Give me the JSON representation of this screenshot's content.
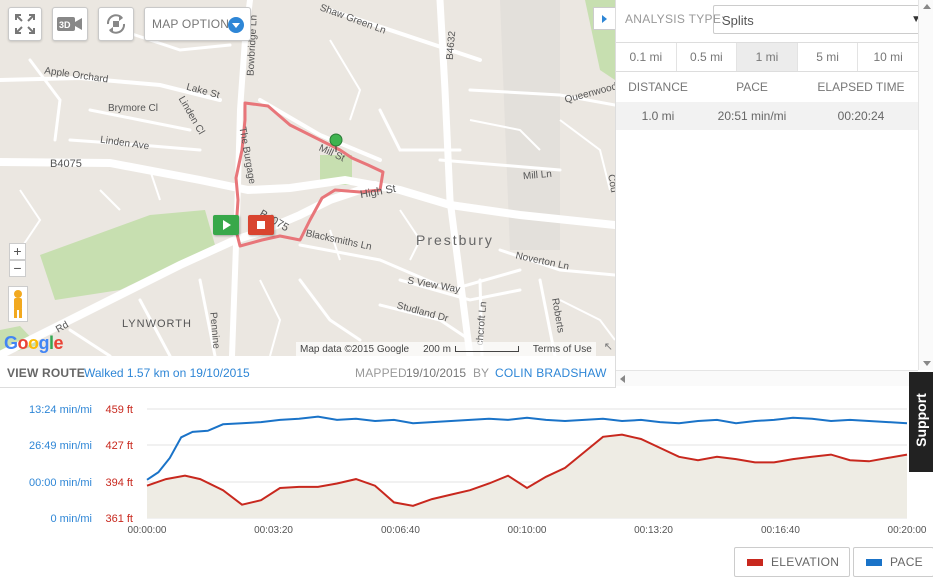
{
  "map": {
    "buttons": {
      "map_options_label": "MAP OPTIONS"
    },
    "zoom": {
      "in": "+",
      "out": "−"
    },
    "logo": "Google",
    "footer": {
      "data": "Map data ©2015 Google",
      "scale": "200 m",
      "terms": "Terms of Use"
    },
    "streets": {
      "shaw_green": "Shaw Green Ln",
      "b4632": "B4632",
      "bowbridge": "Bowbridge Ln",
      "apple_orchard": "Apple Orchard",
      "lake_st": "Lake St",
      "brymore": "Brymore Cl",
      "linden_cl": "Linden Cl",
      "linden_ave": "Linden Ave",
      "b4075": "B4075",
      "the_burgage": "The Burgage",
      "mill_st": "Mill St",
      "mill_ln": "Mill Ln",
      "high_st": "High St",
      "queenwood": "Queenwood",
      "b4075b": "B4075",
      "blacksmiths": "Blacksmiths Ln",
      "prestbury": "Prestbury",
      "noverton": "Noverton Ln",
      "s_view": "S View Way",
      "studland": "Studland Dr",
      "lynworth": "LYNWORTH",
      "pennine": "Pennine",
      "roberts": "Roberts",
      "ashcroft": "chcroft Ln",
      "rd": "Rd",
      "cou": "Cou"
    }
  },
  "analysis": {
    "label": "ANALYSIS TYPE:",
    "selected": "Splits",
    "tabs": [
      "0.1 mi",
      "0.5 mi",
      "1 mi",
      "5 mi",
      "10 mi"
    ],
    "active_tab": "1 mi",
    "columns": [
      "DISTANCE",
      "PACE",
      "ELAPSED TIME"
    ],
    "rows": [
      {
        "distance": "1.0 mi",
        "pace": "20:51 min/mi",
        "elapsed": "00:20:24"
      }
    ]
  },
  "route": {
    "view_route": "VIEW ROUTE",
    "walked": "Walked 1.57 km on 19/10/2015",
    "mapped_label": "MAPPED",
    "mapped_date": "19/10/2015",
    "by_label": "BY",
    "author": "COLIN BRADSHAW"
  },
  "support": "Support",
  "colors": {
    "accent": "#2e86d6",
    "elevation": "#c8281e",
    "pace": "#1a73c8",
    "route": "#e8767a"
  },
  "chart_data": {
    "type": "line",
    "x_ticks": [
      "00:00:00",
      "00:03:20",
      "00:06:40",
      "00:10:00",
      "00:13:20",
      "00:16:40",
      "00:20:00"
    ],
    "x_minutes": [
      0,
      3.33,
      6.67,
      10,
      13.33,
      16.67,
      20
    ],
    "pace_ticks": [
      "13:24 min/mi",
      "26:49 min/mi",
      "00:00 min/mi",
      "0 min/mi"
    ],
    "elevation_ticks": [
      "459 ft",
      "427 ft",
      "394 ft",
      "361 ft"
    ],
    "elevation_ylim": [
      361,
      459
    ],
    "series": [
      {
        "name": "ELEVATION",
        "x": [
          0,
          0.5,
          1.0,
          1.4,
          2.0,
          2.5,
          3.0,
          3.5,
          4.0,
          4.5,
          5.0,
          5.5,
          6.0,
          6.5,
          7.0,
          7.5,
          8.0,
          8.5,
          9.0,
          9.5,
          10.0,
          10.5,
          11.0,
          11.5,
          12.0,
          12.5,
          13.0,
          13.5,
          14.0,
          14.5,
          15.0,
          15.5,
          16.0,
          16.5,
          17.0,
          17.5,
          18.0,
          18.5,
          19.0,
          19.5,
          20.0
        ],
        "values": [
          390,
          396,
          399,
          396,
          386,
          373,
          377,
          388,
          389,
          389,
          392,
          396,
          390,
          375,
          372,
          378,
          382,
          386,
          392,
          399,
          388,
          398,
          406,
          420,
          434,
          436,
          432,
          424,
          416,
          413,
          416,
          414,
          411,
          411,
          414,
          416,
          418,
          413,
          412,
          415,
          418
        ]
      },
      {
        "name": "PACE",
        "x": [
          0,
          0.3,
          0.6,
          0.9,
          1.2,
          1.6,
          2.0,
          2.5,
          3.0,
          3.5,
          4.0,
          4.5,
          5.0,
          5.5,
          6.0,
          6.5,
          7.0,
          7.5,
          8.0,
          8.5,
          9.0,
          9.5,
          10.0,
          10.5,
          11.0,
          11.5,
          12.0,
          12.5,
          13.0,
          13.5,
          14.0,
          14.5,
          15.0,
          15.5,
          16.0,
          16.5,
          17.0,
          17.5,
          18.0,
          18.5,
          19.0,
          19.5,
          20.0
        ],
        "values": [
          0.35,
          0.42,
          0.55,
          0.74,
          0.79,
          0.8,
          0.86,
          0.87,
          0.88,
          0.9,
          0.91,
          0.93,
          0.9,
          0.91,
          0.89,
          0.9,
          0.87,
          0.88,
          0.89,
          0.9,
          0.91,
          0.9,
          0.92,
          0.9,
          0.89,
          0.9,
          0.91,
          0.89,
          0.9,
          0.88,
          0.87,
          0.89,
          0.9,
          0.87,
          0.89,
          0.9,
          0.92,
          0.91,
          0.89,
          0.9,
          0.89,
          0.88,
          0.87
        ]
      }
    ],
    "legend": [
      "ELEVATION",
      "PACE"
    ]
  }
}
